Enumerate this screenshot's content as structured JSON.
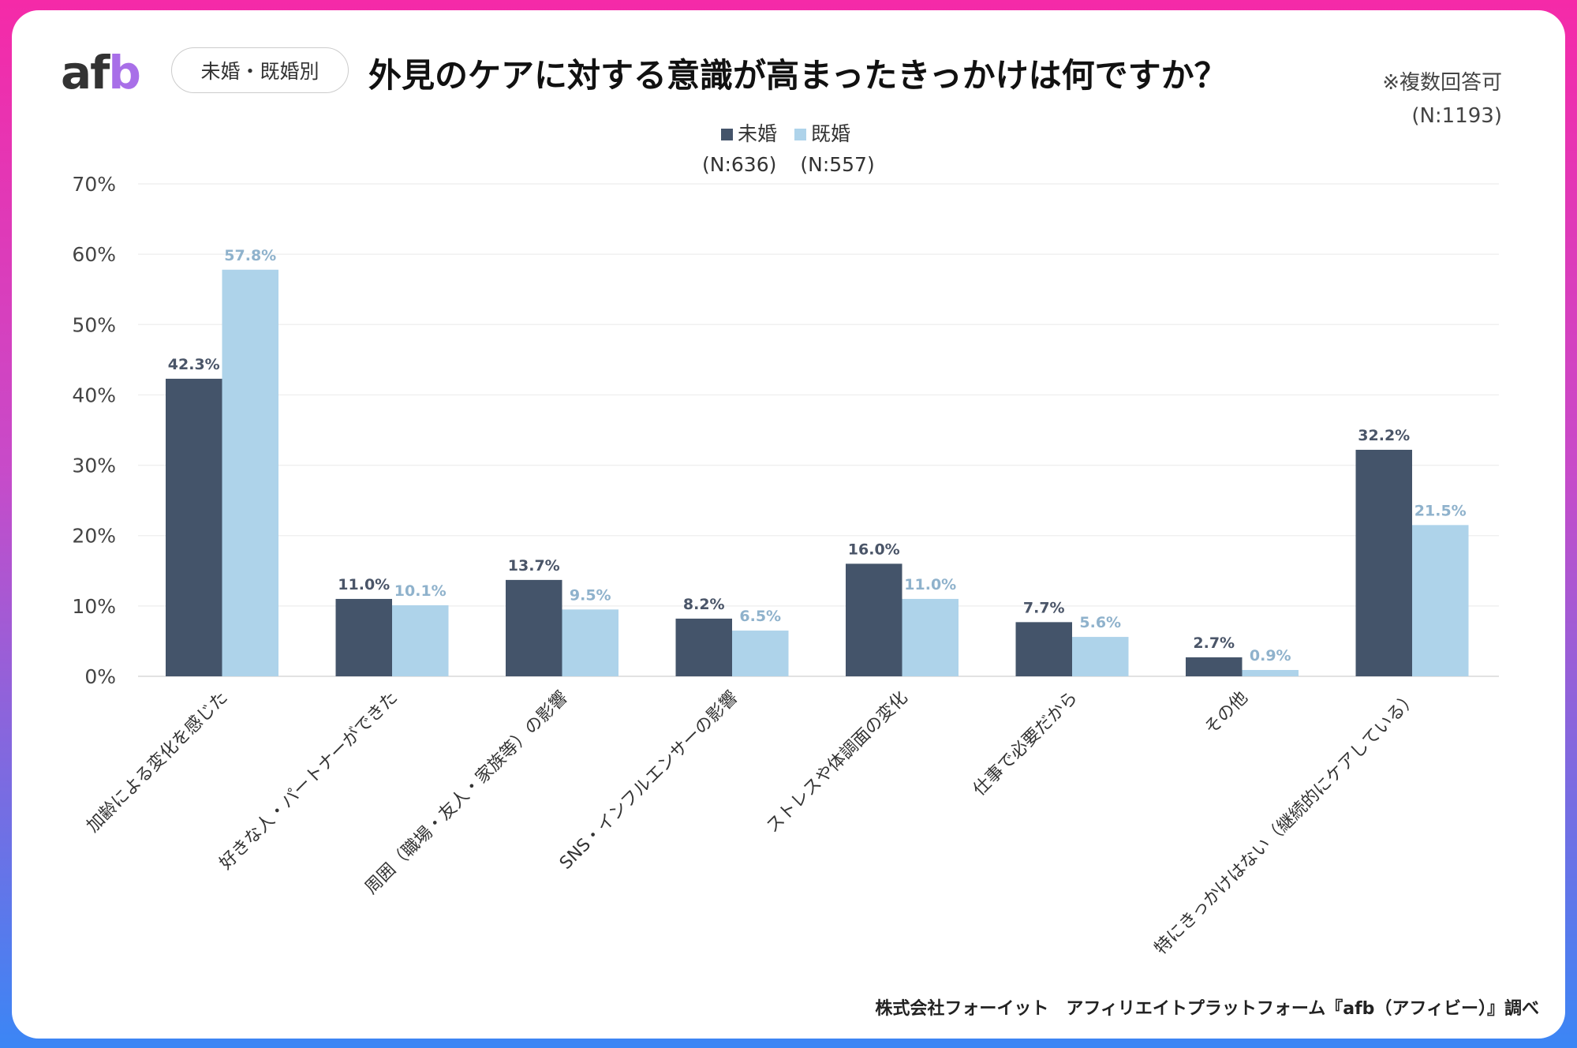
{
  "logo": "afb",
  "segment_label": "未婚・既婚別",
  "note": {
    "multi": "※複数回答可",
    "n_total": "(N:1193)"
  },
  "colors": {
    "unmarried": "#44546a",
    "married": "#aed3ea",
    "unmarried_label": "#4a5568",
    "married_label": "#8fb2cc"
  },
  "footer": "株式会社フォーイット　アフィリエイトプラットフォーム『afb（アフィビー）』調べ",
  "chart_data": {
    "type": "bar",
    "title": "外見のケアに対する意識が高まったきっかけは何ですか？",
    "categories": [
      "加齢による変化を感じた",
      "好きな人・パートナーができた",
      "周囲（職場・友人・家族等）の影響",
      "SNS・インフルエンサーの影響",
      "ストレスや体調面の変化",
      "仕事で必要だから",
      "その他",
      "特にきっかけはない（継続的にケアしている）"
    ],
    "series": [
      {
        "name": "未婚",
        "n": "(N:636)",
        "values": [
          42.3,
          11.0,
          13.7,
          8.2,
          16.0,
          7.7,
          2.7,
          32.2
        ]
      },
      {
        "name": "既婚",
        "n": "(N:557)",
        "values": [
          57.8,
          10.1,
          9.5,
          6.5,
          11.0,
          5.6,
          0.9,
          21.5
        ]
      }
    ],
    "ylim": [
      0,
      70
    ],
    "yticks": [
      "0%",
      "10%",
      "20%",
      "30%",
      "40%",
      "50%",
      "60%",
      "70%"
    ],
    "grid": true,
    "legend": "top-center"
  }
}
